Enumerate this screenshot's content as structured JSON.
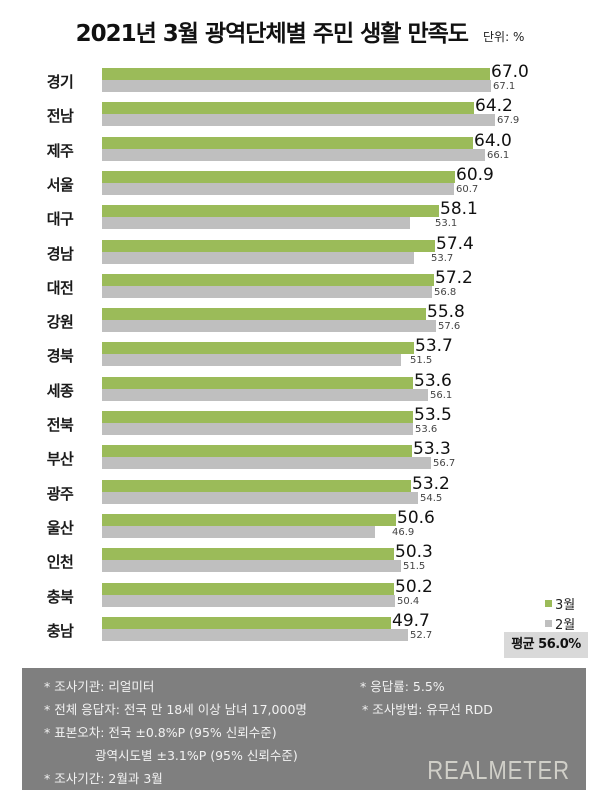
{
  "title": "2021년 3월 광역단체별 주민 생활 만족도",
  "unit": "단위: %",
  "legend": {
    "mar": "3월",
    "feb": "2월"
  },
  "average": "평균 56.0%",
  "colors": {
    "mar": "#9bbb59",
    "feb": "#bfbfbf",
    "footer_bg": "#7f7f7f",
    "avg_bg": "#d9d9d9"
  },
  "chart_data": {
    "type": "bar",
    "orientation": "horizontal",
    "title": "2021년 3월 광역단체별 주민 생활 만족도",
    "unit": "%",
    "categories": [
      "경기",
      "전남",
      "제주",
      "서울",
      "대구",
      "경남",
      "대전",
      "강원",
      "경북",
      "세종",
      "전북",
      "부산",
      "광주",
      "울산",
      "인천",
      "충북",
      "충남"
    ],
    "series": [
      {
        "name": "3월",
        "values": [
          67.0,
          64.2,
          64.0,
          60.9,
          58.1,
          57.4,
          57.2,
          55.8,
          53.7,
          53.6,
          53.5,
          53.3,
          53.2,
          50.6,
          50.3,
          50.2,
          49.7
        ]
      },
      {
        "name": "2월",
        "values": [
          67.1,
          67.9,
          66.1,
          60.7,
          53.1,
          53.7,
          56.8,
          57.6,
          51.5,
          56.1,
          53.6,
          56.7,
          54.5,
          46.9,
          51.5,
          50.4,
          52.7
        ]
      }
    ],
    "average": 56.0,
    "legend_position": "bottom-right",
    "grid": false
  },
  "rows": [
    {
      "label": "경기",
      "mar": "67.0",
      "feb": "67.1"
    },
    {
      "label": "전남",
      "mar": "64.2",
      "feb": "67.9"
    },
    {
      "label": "제주",
      "mar": "64.0",
      "feb": "66.1"
    },
    {
      "label": "서울",
      "mar": "60.9",
      "feb": "60.7"
    },
    {
      "label": "대구",
      "mar": "58.1",
      "feb": "53.1"
    },
    {
      "label": "경남",
      "mar": "57.4",
      "feb": "53.7"
    },
    {
      "label": "대전",
      "mar": "57.2",
      "feb": "56.8"
    },
    {
      "label": "강원",
      "mar": "55.8",
      "feb": "57.6"
    },
    {
      "label": "경북",
      "mar": "53.7",
      "feb": "51.5"
    },
    {
      "label": "세종",
      "mar": "53.6",
      "feb": "56.1"
    },
    {
      "label": "전북",
      "mar": "53.5",
      "feb": "53.6"
    },
    {
      "label": "부산",
      "mar": "53.3",
      "feb": "56.7"
    },
    {
      "label": "광주",
      "mar": "53.2",
      "feb": "54.5"
    },
    {
      "label": "울산",
      "mar": "50.6",
      "feb": "46.9"
    },
    {
      "label": "인천",
      "mar": "50.3",
      "feb": "51.5"
    },
    {
      "label": "충북",
      "mar": "50.2",
      "feb": "50.4"
    },
    {
      "label": "충남",
      "mar": "49.7",
      "feb": "52.7"
    }
  ],
  "footer": {
    "agency": "* 조사기관: 리얼미터",
    "respondents": "* 전체 응답자: 전국 만 18세 이상 남녀 17,000명",
    "error_national": "* 표본오차: 전국 ±0.8%P (95% 신뢰수준)",
    "error_regional": "광역시도별 ±3.1%P (95% 신뢰수준)",
    "period": "* 조사기간: 2월과 3월",
    "response_rate": "* 응답률: 5.5%",
    "method": "* 조사방법: 유무선 RDD",
    "brand": "REALMETER"
  }
}
